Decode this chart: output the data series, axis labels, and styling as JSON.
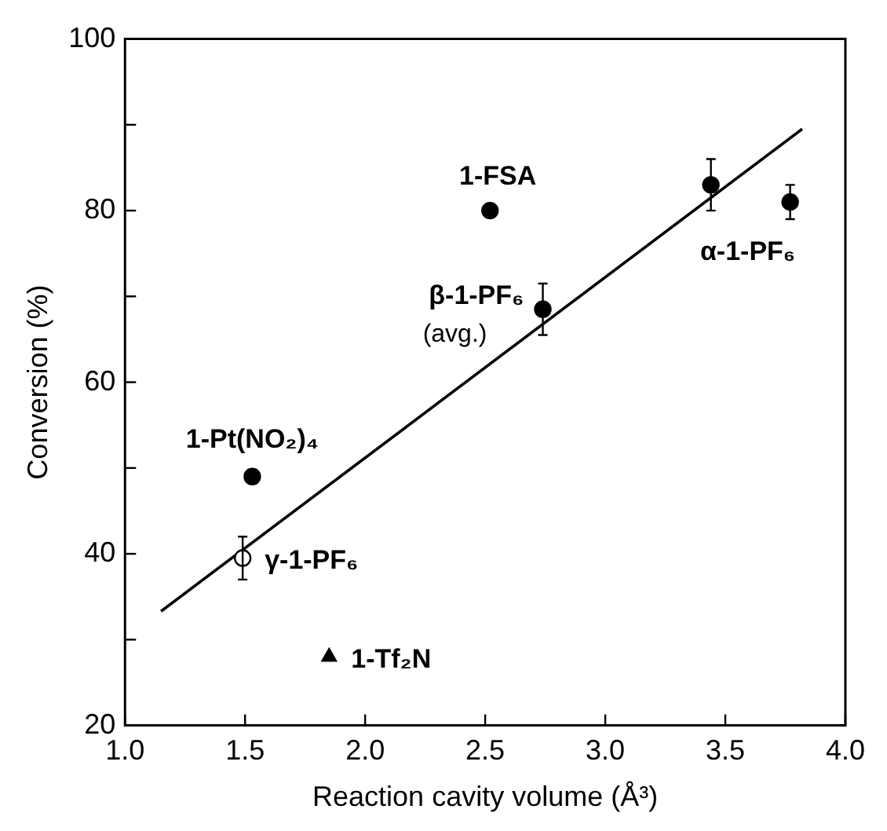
{
  "chart_data": {
    "type": "scatter",
    "xlabel": "Reaction cavity volume (Å³)",
    "ylabel": "Conversion (%)",
    "xlim": [
      1.0,
      4.0
    ],
    "xticks": [
      {
        "value": 1.0,
        "label": "1.0"
      },
      {
        "value": 1.5,
        "label": "1.5"
      },
      {
        "value": 2.0,
        "label": "2.0"
      },
      {
        "value": 2.5,
        "label": "2.5"
      },
      {
        "value": 3.0,
        "label": "3.0"
      },
      {
        "value": 3.5,
        "label": "3.5"
      },
      {
        "value": 4.0,
        "label": "4.0"
      }
    ],
    "ylim": [
      20,
      100
    ],
    "yticks": [
      20,
      {
        "value": 30,
        "label": null
      },
      40,
      {
        "value": 50,
        "label": null
      },
      60,
      {
        "value": 70,
        "label": null
      },
      80,
      {
        "value": 90,
        "label": null
      },
      100
    ],
    "series": [
      {
        "name": "1-FSA",
        "color": "#000000",
        "marker": "circle",
        "x": [
          2.52
        ],
        "values": [
          80
        ]
      },
      {
        "color": "#000000",
        "marker": "circle",
        "x": [
          3.44
        ],
        "values": [
          83
        ],
        "errors": [
          3
        ]
      },
      {
        "name": "α-1-PF₆",
        "color": "#000000",
        "marker": "circle",
        "x": [
          3.77
        ],
        "values": [
          81
        ],
        "errors": [
          2
        ]
      },
      {
        "name": "β-1-PF₆",
        "color": "#000000",
        "marker": "circle",
        "x": [
          2.74
        ],
        "values": [
          68.5
        ],
        "errors": [
          3
        ]
      },
      {
        "name": "1-Pt(NO₂)₄",
        "color": "#000000",
        "marker": "circle",
        "x": [
          1.53
        ],
        "values": [
          49
        ]
      },
      {
        "name": "γ-1-PF₆",
        "color": "#ffffff",
        "marker": "circle",
        "x": [
          1.49
        ],
        "values": [
          39.5
        ],
        "errors": [
          2.5
        ]
      },
      {
        "name": "1-Tf₂N",
        "color": "#000000",
        "marker": "triangle",
        "x": [
          1.85
        ],
        "values": [
          28
        ]
      },
      {
        "type": "line",
        "color": "#000000",
        "marker": "none",
        "line_style": "solid",
        "x": [
          1.15,
          3.82
        ],
        "values": [
          33.3,
          89.5
        ]
      }
    ],
    "annotations": [
      {
        "text": "(avg.)",
        "x": 2.74,
        "y": 68.5
      }
    ]
  }
}
